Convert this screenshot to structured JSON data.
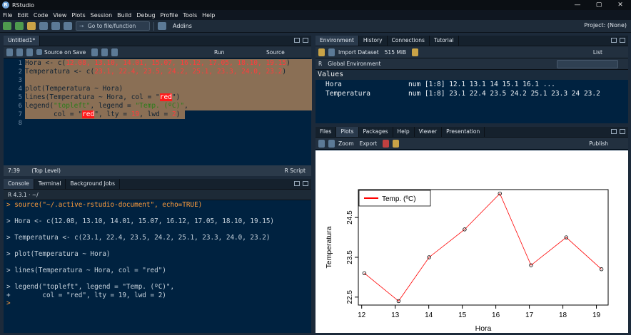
{
  "app": {
    "title": "RStudio",
    "window_controls": [
      "—",
      "▢",
      "✕"
    ]
  },
  "menu": [
    "File",
    "Edit",
    "Code",
    "View",
    "Plots",
    "Session",
    "Build",
    "Debug",
    "Profile",
    "Tools",
    "Help"
  ],
  "toolbar": {
    "goto_label": "Go to file/function",
    "addins_label": "Addins",
    "project_label": "Project: (None)"
  },
  "editor": {
    "tab_label": "Untitled1*",
    "source_on_save": "Source on Save",
    "run_label": "Run",
    "source_label": "Source",
    "line_numbers": [
      "1",
      "2",
      "3",
      "4",
      "5",
      "6",
      "7",
      "8"
    ],
    "status_pos": "7:39",
    "status_scope": "(Top Level)",
    "status_type": "R Script"
  },
  "code": {
    "l1_a": "Hora <- c(",
    "l1_n": "12.08, 13.10, 14.01, 15.07, 16.12, 17.05, 18.10, 19.15",
    "l1_b": ")",
    "l2_a": "Temperatura <- c(",
    "l2_n": "23.1, 22.4, 23.5, 24.2, 25.1, 23.3, 24.0, 23.2",
    "l2_b": ")",
    "l4": "plot(Temperatura ~ Hora)",
    "l5_a": "lines(Temperatura ~ Hora, col = \"",
    "l5_red": "red",
    "l5_b": "\")",
    "l6_a": "legend(",
    "l6_s1": "\"topleft\"",
    "l6_b": ", legend = ",
    "l6_s2": "\"Temp. (ºC)\"",
    "l6_c": ",",
    "l7_a": "       col = \"",
    "l7_red": "red",
    "l7_b": "\", lty = ",
    "l7_n1": "19",
    "l7_c": ", lwd = ",
    "l7_n2": "2",
    "l7_d": ")"
  },
  "console": {
    "tabs": [
      "Console",
      "Terminal",
      "Background Jobs"
    ],
    "header": "R 4.3.1 · ~/",
    "lines": [
      "> source(\"~/.active-rstudio-document\", echo=TRUE)",
      "",
      "> Hora <- c(12.08, 13.10, 14.01, 15.07, 16.12, 17.05, 18.10, 19.15)",
      "",
      "> Temperatura <- c(23.1, 22.4, 23.5, 24.2, 25.1, 23.3, 24.0, 23.2)",
      "",
      "> plot(Temperatura ~ Hora)",
      "",
      "> lines(Temperatura ~ Hora, col = \"red\")",
      "",
      "> legend(\"topleft\", legend = \"Temp. (ºC)\",",
      "+        col = \"red\", lty = 19, lwd = 2)",
      ">"
    ]
  },
  "environment": {
    "tabs": [
      "Environment",
      "History",
      "Connections",
      "Tutorial"
    ],
    "import_label": "Import Dataset",
    "memory": "515 MiB",
    "list_label": "List",
    "lang": "R",
    "scope": "Global Environment",
    "section": "Values",
    "rows": [
      {
        "name": "Hora",
        "value": "num [1:8] 12.1 13.1 14 15.1 16.1 ..."
      },
      {
        "name": "Temperatura",
        "value": "num [1:8] 23.1 22.4 23.5 24.2 25.1 23.3 24 23.2"
      }
    ]
  },
  "plots": {
    "tabs": [
      "Files",
      "Plots",
      "Packages",
      "Help",
      "Viewer",
      "Presentation"
    ],
    "zoom_label": "Zoom",
    "export_label": "Export",
    "publish_label": "Publish"
  },
  "chart_data": {
    "type": "line",
    "x": [
      12.08,
      13.1,
      14.01,
      15.07,
      16.12,
      17.05,
      18.1,
      19.15
    ],
    "y": [
      23.1,
      22.4,
      23.5,
      24.2,
      25.1,
      23.3,
      24.0,
      23.2
    ],
    "xlabel": "Hora",
    "ylabel": "Temperatura",
    "xticks": [
      12,
      13,
      14,
      15,
      16,
      17,
      18,
      19
    ],
    "yticks": [
      22.5,
      23.5,
      24.5
    ],
    "xlim": [
      11.9,
      19.35
    ],
    "ylim": [
      22.3,
      25.2
    ],
    "legend": "Temp. (ºC)",
    "legend_position": "top-left",
    "line_color": "#ff0000",
    "point_color": "#000000"
  }
}
